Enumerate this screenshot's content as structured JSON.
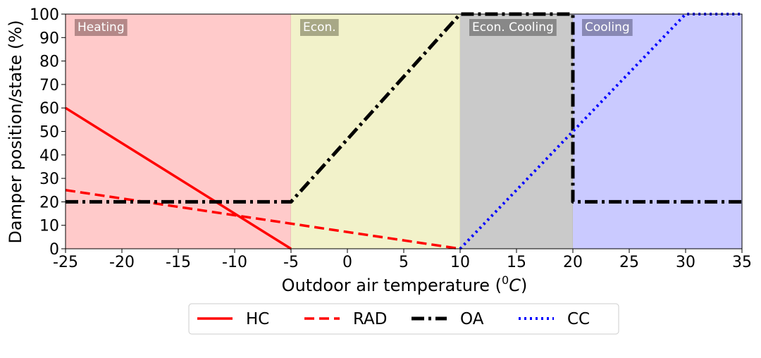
{
  "chart_data": {
    "type": "line",
    "xlabel": "Outdoor air temperature (",
    "xlabel_sup": "0",
    "xlabel_unit": "C",
    "xlabel_close": ")",
    "ylabel": "Damper position/state (%)",
    "xlim": [
      -25,
      35
    ],
    "ylim": [
      0,
      100
    ],
    "xticks": [
      -25,
      -20,
      -15,
      -10,
      -5,
      0,
      5,
      10,
      15,
      20,
      25,
      30,
      35
    ],
    "yticks": [
      0,
      10,
      20,
      30,
      40,
      50,
      60,
      70,
      80,
      90,
      100
    ],
    "grid": false,
    "regions": [
      {
        "label": "Heating",
        "x0": -25,
        "x1": -5,
        "color": "#ffcaca",
        "label_bg": "#b48888"
      },
      {
        "label": "Econ.",
        "x0": -5,
        "x1": 10,
        "color": "#f2f2ca",
        "label_bg": "#a8a886"
      },
      {
        "label": "Econ. Cooling",
        "x0": 10,
        "x1": 20,
        "color": "#cacaca",
        "label_bg": "#888888"
      },
      {
        "label": "Cooling",
        "x0": 20,
        "x1": 35,
        "color": "#cacaff",
        "label_bg": "#8888b4"
      }
    ],
    "series": [
      {
        "name": "HC",
        "color": "#ff0000",
        "style": "solid",
        "x": [
          -25,
          -5
        ],
        "y": [
          60,
          0
        ]
      },
      {
        "name": "RAD",
        "color": "#ff0000",
        "style": "dashed",
        "x": [
          -25,
          10
        ],
        "y": [
          25,
          0
        ]
      },
      {
        "name": "OA",
        "color": "#000000",
        "style": "dashdot",
        "x": [
          -25,
          -5,
          10,
          20,
          20,
          35
        ],
        "y": [
          20,
          20,
          100,
          100,
          20,
          20
        ]
      },
      {
        "name": "CC",
        "color": "#0000ff",
        "style": "dotted",
        "x": [
          10,
          30,
          35
        ],
        "y": [
          0,
          100,
          100
        ]
      }
    ],
    "legend_position": "bottom-center"
  }
}
